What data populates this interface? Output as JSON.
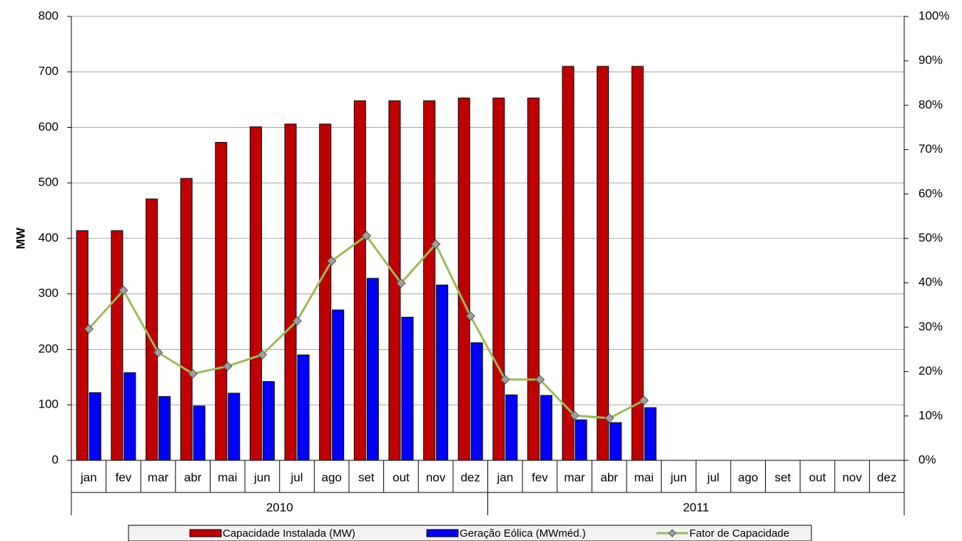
{
  "chart_data": {
    "type": "bar_line",
    "y_label": "MW",
    "categories": [
      "jan",
      "fev",
      "mar",
      "abr",
      "mai",
      "jun",
      "jul",
      "ago",
      "set",
      "out",
      "nov",
      "dez",
      "jan",
      "fev",
      "mar",
      "abr",
      "mai",
      "jun",
      "jul",
      "ago",
      "set",
      "out",
      "nov",
      "dez"
    ],
    "x_groups": [
      "2010",
      "2011"
    ],
    "series": [
      {
        "name": "Capacidade Instalada (MW)",
        "type": "bar",
        "color": "#c00000",
        "values": [
          414,
          414,
          471,
          508,
          573,
          601,
          606,
          606,
          648,
          648,
          648,
          653,
          653,
          653,
          710,
          710,
          710,
          null,
          null,
          null,
          null,
          null,
          null,
          null
        ]
      },
      {
        "name": "Geração Eólica (MWméd.)",
        "type": "bar",
        "color": "#0000ff",
        "values": [
          122,
          158,
          115,
          98,
          121,
          142,
          190,
          271,
          328,
          258,
          316,
          212,
          118,
          117,
          73,
          68,
          95,
          null,
          null,
          null,
          null,
          null,
          null,
          null
        ]
      },
      {
        "name": "Fator de Capacidade",
        "type": "line",
        "axis": "y2",
        "color": "#9bbb59",
        "marker_color": "#a0a0a0",
        "values": [
          29.6,
          38.3,
          24.3,
          19.5,
          21.2,
          23.8,
          31.4,
          44.9,
          50.6,
          39.9,
          48.7,
          32.5,
          18.2,
          18.2,
          10.1,
          9.5,
          13.5,
          null,
          null,
          null,
          null,
          null,
          null,
          null
        ]
      }
    ],
    "ylim": [
      0,
      800
    ],
    "yticks": [
      0,
      100,
      200,
      300,
      400,
      500,
      600,
      700,
      800
    ],
    "y2lim": [
      0,
      100
    ],
    "y2ticks": [
      {
        "value": 0,
        "label": "0%"
      },
      {
        "value": 10,
        "label": "10%"
      },
      {
        "value": 20,
        "label": "20%"
      },
      {
        "value": 30,
        "label": "30%"
      },
      {
        "value": 40,
        "label": "40%"
      },
      {
        "value": 50,
        "label": "50%"
      },
      {
        "value": 60,
        "label": "60%"
      },
      {
        "value": 70,
        "label": "70%"
      },
      {
        "value": 80,
        "label": "80%"
      },
      {
        "value": 90,
        "label": "90%"
      },
      {
        "value": 100,
        "label": "100%"
      }
    ],
    "grid": true,
    "legend": "bottom"
  }
}
